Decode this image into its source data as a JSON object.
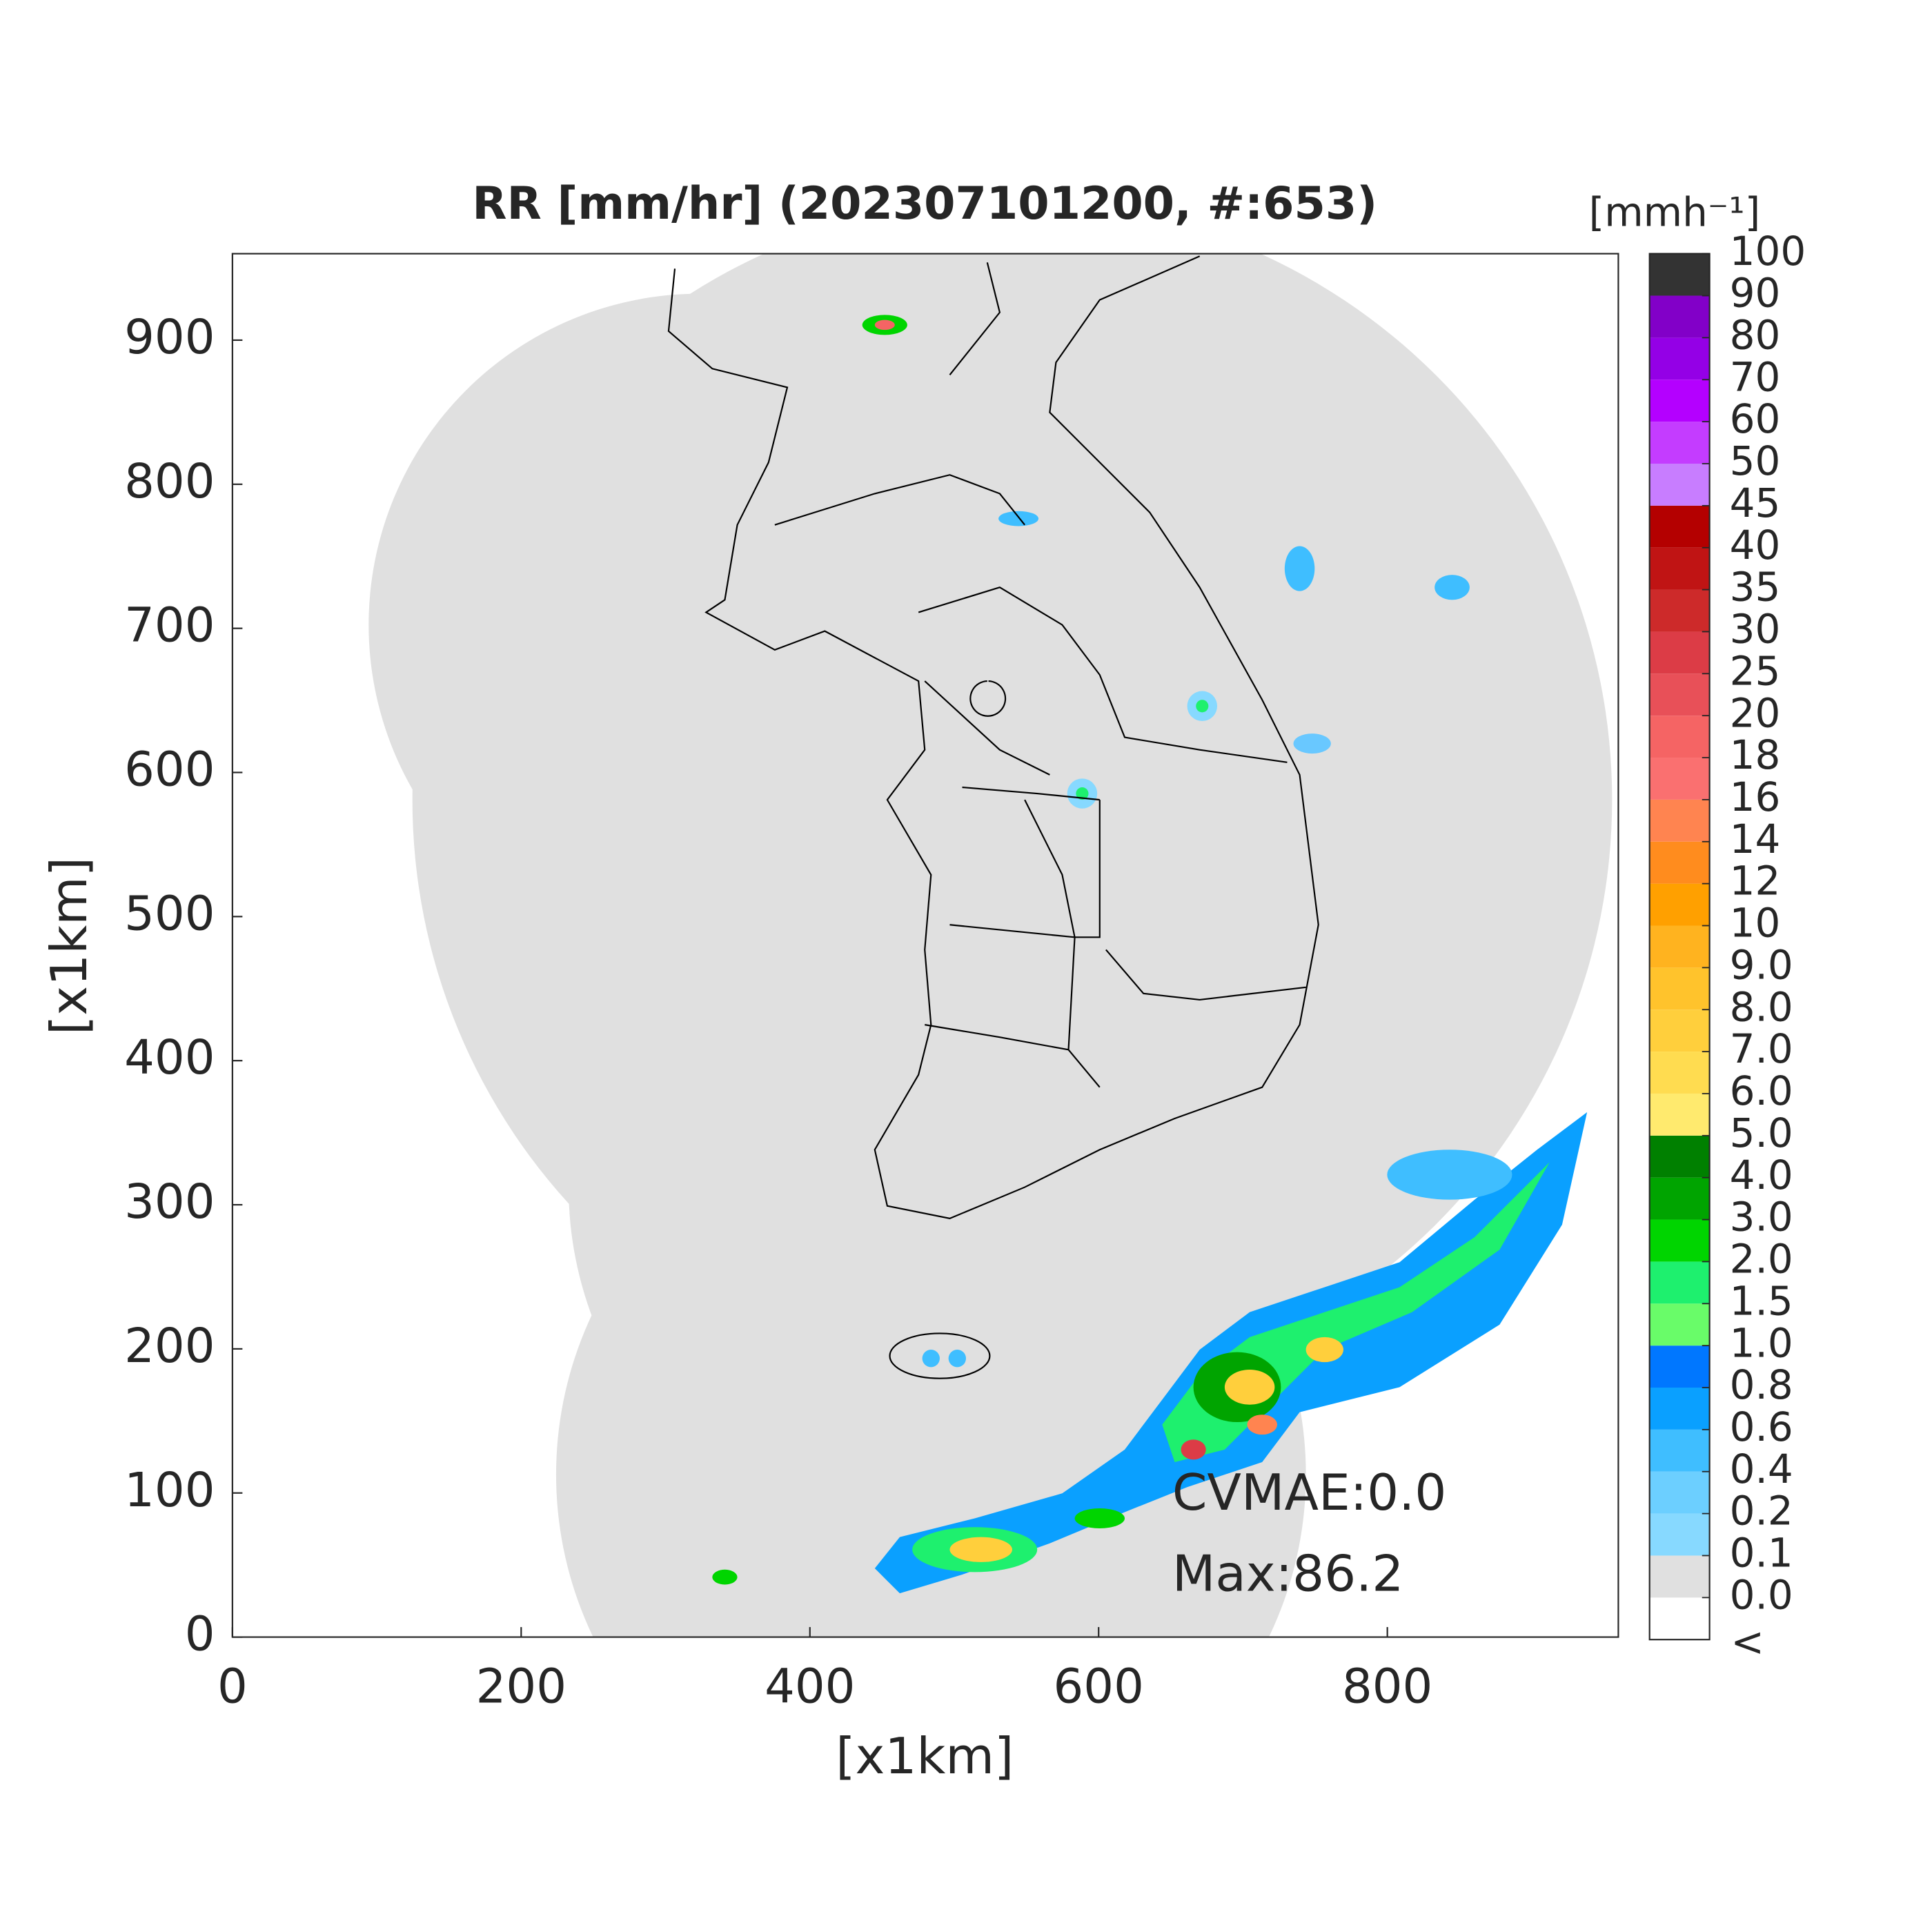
{
  "chart_data": {
    "type": "heatmap",
    "title": "RR [mm/hr] (202307101200, #:653)",
    "xlabel": "[x1km]",
    "ylabel": "[x1km]",
    "xlim": [
      0,
      960
    ],
    "ylim": [
      0,
      960
    ],
    "xticks": [
      0,
      200,
      400,
      600,
      800
    ],
    "yticks": [
      0,
      100,
      200,
      300,
      400,
      500,
      600,
      700,
      800,
      900
    ],
    "annotations": [
      "CVMAE:0.0",
      "Max:86.2"
    ],
    "colorbar": {
      "label": "[mmh⁻¹]",
      "under_label": "<",
      "ticks": [
        {
          "value": 0,
          "label": "0.0"
        },
        {
          "value": 0.1,
          "label": "0.1"
        },
        {
          "value": 0.2,
          "label": "0.2"
        },
        {
          "value": 0.4,
          "label": "0.4"
        },
        {
          "value": 0.6,
          "label": "0.6"
        },
        {
          "value": 0.8,
          "label": "0.8"
        },
        {
          "value": 1,
          "label": "1.0"
        },
        {
          "value": 1.5,
          "label": "1.5"
        },
        {
          "value": 2,
          "label": "2.0"
        },
        {
          "value": 3,
          "label": "3.0"
        },
        {
          "value": 4,
          "label": "4.0"
        },
        {
          "value": 5,
          "label": "5.0"
        },
        {
          "value": 6,
          "label": "6.0"
        },
        {
          "value": 7,
          "label": "7.0"
        },
        {
          "value": 8,
          "label": "8.0"
        },
        {
          "value": 9,
          "label": "9.0"
        },
        10,
        12,
        14,
        16,
        18,
        20,
        25,
        30,
        35,
        40,
        45,
        50,
        60,
        70,
        80,
        90,
        100
      ],
      "colors": [
        "#ffffff",
        "#e0e0e0",
        "#87d9ff",
        "#6ccfff",
        "#3fbeff",
        "#0aa0ff",
        "#0077ff",
        "#69fc69",
        "#1ef06e",
        "#00d500",
        "#00a400",
        "#008000",
        "#ffea6e",
        "#ffdc50",
        "#ffcf3c",
        "#ffc32c",
        "#ffb31f",
        "#ffa000",
        "#ff8c1e",
        "#ff8450",
        "#fa7070",
        "#f56464",
        "#e85058",
        "#dc3c46",
        "#cd2a2a",
        "#c01414",
        "#b40000",
        "#c87dff",
        "#c43cff",
        "#b400ff",
        "#9400e6",
        "#8200c8",
        "#333333"
      ]
    }
  }
}
